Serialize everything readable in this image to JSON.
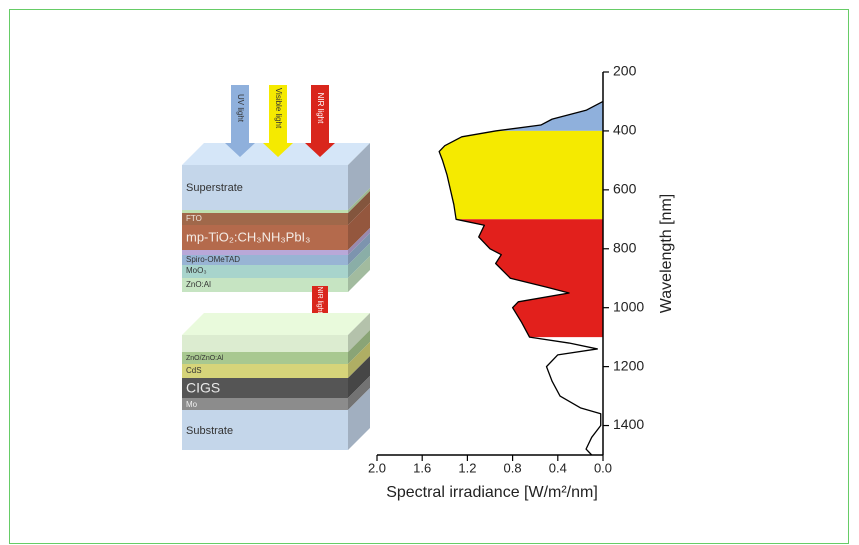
{
  "diagram": {
    "top_arrows": [
      "UV light",
      "Visible light",
      "NIR light"
    ],
    "top_layers": [
      "Superstrate",
      "FTO",
      "mp-TiO₂:CH₃NH₃PbI₃",
      "Spiro-OMeTAD",
      "MoO₃",
      "ZnO:Al"
    ],
    "bottom_arrow": "NIR light",
    "bottom_layers": [
      "ZnO/ZnO:Al",
      "CdS",
      "CIGS",
      "Mo",
      "Substrate"
    ]
  },
  "chart_data": {
    "type": "line",
    "orientation": "horizontal",
    "x_label": "Spectral irradiance [W/m²/nm]",
    "y_label": "Wavelength [nm]",
    "x": [
      300,
      330,
      360,
      380,
      400,
      420,
      450,
      470,
      500,
      550,
      600,
      650,
      700,
      720,
      760,
      800,
      820,
      850,
      900,
      930,
      950,
      980,
      1000,
      1050,
      1100,
      1120,
      1140,
      1160,
      1200,
      1250,
      1300,
      1340,
      1360,
      1400,
      1440,
      1480,
      1500
    ],
    "values": [
      0,
      0.15,
      0.45,
      0.55,
      0.95,
      1.25,
      1.4,
      1.45,
      1.42,
      1.38,
      1.35,
      1.32,
      1.3,
      1.05,
      1.1,
      1.0,
      0.9,
      0.95,
      0.82,
      0.5,
      0.3,
      0.75,
      0.8,
      0.72,
      0.65,
      0.3,
      0.05,
      0.4,
      0.5,
      0.45,
      0.38,
      0.2,
      0.02,
      0.02,
      0.1,
      0.15,
      0.1
    ],
    "color": "#000000",
    "bands": [
      {
        "from": 300,
        "to": 400,
        "color": "#8fb0dc"
      },
      {
        "from": 400,
        "to": 700,
        "color": "#f5ea00"
      },
      {
        "from": 700,
        "to": 1100,
        "color": "#e2201c"
      }
    ],
    "xlim": [
      2.0,
      0
    ],
    "xticks": [
      {
        "value": 2,
        "label": "2.0"
      },
      {
        "value": 1.6,
        "label": "1.6"
      },
      {
        "value": 1.2,
        "label": "1.2"
      },
      {
        "value": 0.8,
        "label": "0.8"
      },
      {
        "value": 0.4,
        "label": "0.4"
      },
      {
        "value": 0,
        "label": "0.0"
      }
    ],
    "ylim": [
      200,
      1500
    ],
    "yticks": [
      200,
      400,
      600,
      800,
      1000,
      1200,
      1400
    ],
    "grid": false
  }
}
